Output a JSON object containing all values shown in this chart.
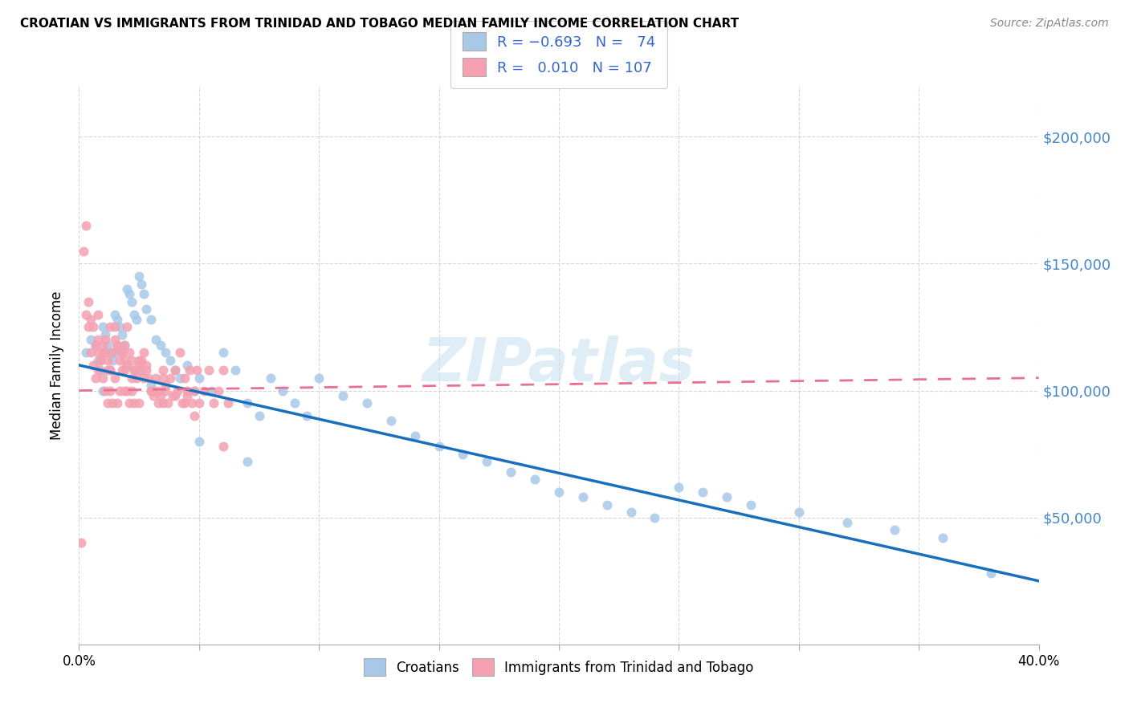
{
  "title": "CROATIAN VS IMMIGRANTS FROM TRINIDAD AND TOBAGO MEDIAN FAMILY INCOME CORRELATION CHART",
  "source": "Source: ZipAtlas.com",
  "ylabel": "Median Family Income",
  "ytick_labels": [
    "$50,000",
    "$100,000",
    "$150,000",
    "$200,000"
  ],
  "ytick_values": [
    50000,
    100000,
    150000,
    200000
  ],
  "xlim": [
    0.0,
    0.4
  ],
  "ylim": [
    0,
    220000
  ],
  "watermark": "ZIPatlas",
  "color_blue": "#a8c8e8",
  "color_pink": "#f4a0b0",
  "line_blue": "#1a6fbd",
  "line_pink": "#e87090",
  "background": "#ffffff",
  "croatians_x": [
    0.003,
    0.005,
    0.007,
    0.008,
    0.009,
    0.01,
    0.011,
    0.012,
    0.013,
    0.014,
    0.015,
    0.016,
    0.017,
    0.018,
    0.019,
    0.02,
    0.021,
    0.022,
    0.023,
    0.024,
    0.025,
    0.026,
    0.027,
    0.028,
    0.03,
    0.032,
    0.034,
    0.036,
    0.038,
    0.04,
    0.042,
    0.045,
    0.048,
    0.05,
    0.055,
    0.06,
    0.065,
    0.07,
    0.075,
    0.08,
    0.085,
    0.09,
    0.095,
    0.1,
    0.11,
    0.12,
    0.13,
    0.14,
    0.15,
    0.16,
    0.17,
    0.18,
    0.19,
    0.2,
    0.21,
    0.22,
    0.23,
    0.24,
    0.25,
    0.26,
    0.27,
    0.28,
    0.3,
    0.32,
    0.34,
    0.36,
    0.38,
    0.01,
    0.015,
    0.02,
    0.025,
    0.03,
    0.05,
    0.07
  ],
  "croatians_y": [
    115000,
    120000,
    118000,
    112000,
    108000,
    125000,
    122000,
    118000,
    115000,
    112000,
    130000,
    128000,
    125000,
    122000,
    118000,
    140000,
    138000,
    135000,
    130000,
    128000,
    145000,
    142000,
    138000,
    132000,
    128000,
    120000,
    118000,
    115000,
    112000,
    108000,
    105000,
    110000,
    100000,
    105000,
    100000,
    115000,
    108000,
    95000,
    90000,
    105000,
    100000,
    95000,
    90000,
    105000,
    98000,
    95000,
    88000,
    82000,
    78000,
    75000,
    72000,
    68000,
    65000,
    60000,
    58000,
    55000,
    52000,
    50000,
    62000,
    60000,
    58000,
    55000,
    52000,
    48000,
    45000,
    42000,
    28000,
    100000,
    115000,
    110000,
    108000,
    102000,
    80000,
    72000
  ],
  "trinidad_x": [
    0.003,
    0.004,
    0.005,
    0.006,
    0.007,
    0.008,
    0.008,
    0.009,
    0.01,
    0.01,
    0.011,
    0.011,
    0.012,
    0.012,
    0.013,
    0.013,
    0.014,
    0.014,
    0.015,
    0.015,
    0.016,
    0.016,
    0.017,
    0.017,
    0.018,
    0.018,
    0.019,
    0.019,
    0.02,
    0.02,
    0.021,
    0.021,
    0.022,
    0.022,
    0.023,
    0.023,
    0.024,
    0.025,
    0.025,
    0.026,
    0.027,
    0.028,
    0.029,
    0.03,
    0.031,
    0.032,
    0.033,
    0.034,
    0.035,
    0.036,
    0.037,
    0.038,
    0.039,
    0.04,
    0.041,
    0.042,
    0.043,
    0.044,
    0.045,
    0.046,
    0.047,
    0.048,
    0.049,
    0.05,
    0.052,
    0.054,
    0.056,
    0.058,
    0.06,
    0.062,
    0.004,
    0.006,
    0.008,
    0.01,
    0.012,
    0.015,
    0.018,
    0.02,
    0.022,
    0.025,
    0.028,
    0.03,
    0.033,
    0.036,
    0.04,
    0.044,
    0.048,
    0.005,
    0.007,
    0.009,
    0.011,
    0.013,
    0.016,
    0.019,
    0.023,
    0.027,
    0.031,
    0.035,
    0.002,
    0.008,
    0.013,
    0.019,
    0.026,
    0.035,
    0.045,
    0.003,
    0.06,
    0.001
  ],
  "trinidad_y": [
    130000,
    125000,
    115000,
    110000,
    105000,
    115000,
    108000,
    112000,
    118000,
    105000,
    120000,
    100000,
    112000,
    95000,
    108000,
    100000,
    115000,
    95000,
    120000,
    105000,
    118000,
    95000,
    112000,
    100000,
    108000,
    115000,
    100000,
    108000,
    125000,
    100000,
    115000,
    95000,
    112000,
    100000,
    108000,
    95000,
    105000,
    110000,
    95000,
    108000,
    115000,
    110000,
    105000,
    100000,
    98000,
    105000,
    100000,
    98000,
    108000,
    100000,
    95000,
    105000,
    98000,
    108000,
    100000,
    115000,
    95000,
    105000,
    100000,
    108000,
    95000,
    100000,
    108000,
    95000,
    100000,
    108000,
    95000,
    100000,
    108000,
    95000,
    135000,
    125000,
    120000,
    115000,
    108000,
    125000,
    115000,
    110000,
    105000,
    112000,
    108000,
    100000,
    95000,
    102000,
    98000,
    95000,
    90000,
    128000,
    118000,
    112000,
    115000,
    108000,
    118000,
    112000,
    108000,
    105000,
    100000,
    95000,
    155000,
    130000,
    125000,
    118000,
    112000,
    105000,
    98000,
    165000,
    78000,
    40000
  ]
}
